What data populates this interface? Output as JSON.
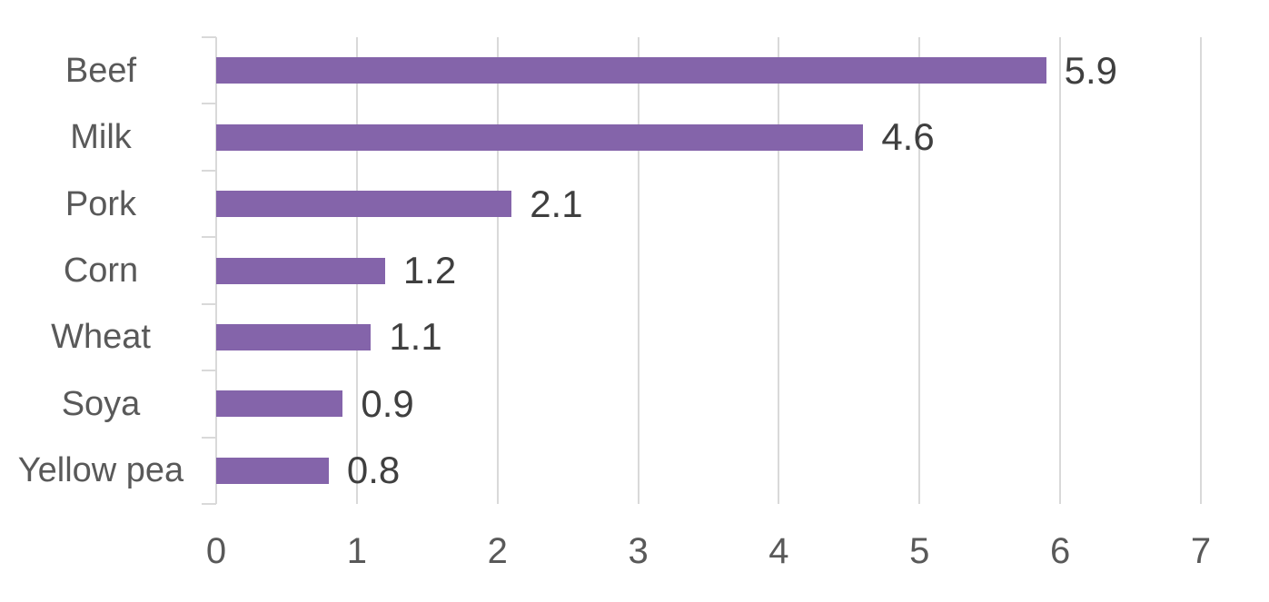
{
  "chart_data": {
    "type": "bar",
    "orientation": "horizontal",
    "title": "",
    "xlabel": "",
    "ylabel": "",
    "categories": [
      "Beef",
      "Milk",
      "Pork",
      "Corn",
      "Wheat",
      "Soya",
      "Yellow pea"
    ],
    "values": [
      5.9,
      4.6,
      2.1,
      1.2,
      1.1,
      0.9,
      0.8
    ],
    "data_labels": [
      "5.9",
      "4.6",
      "2.1",
      "1.2",
      "1.1",
      "0.9",
      "0.8"
    ],
    "xlim": [
      0,
      7
    ],
    "x_ticks": [
      "0",
      "1",
      "2",
      "3",
      "4",
      "5",
      "6",
      "7"
    ],
    "grid": true,
    "legend": false,
    "colors": {
      "bar": "#8464AA",
      "gridline": "#D9D9D9",
      "axis_line": "#D9D9D9",
      "category_label": "#595959",
      "x_tick_label": "#595959",
      "data_label": "#3F3F3F",
      "background": "#FFFFFF"
    }
  }
}
